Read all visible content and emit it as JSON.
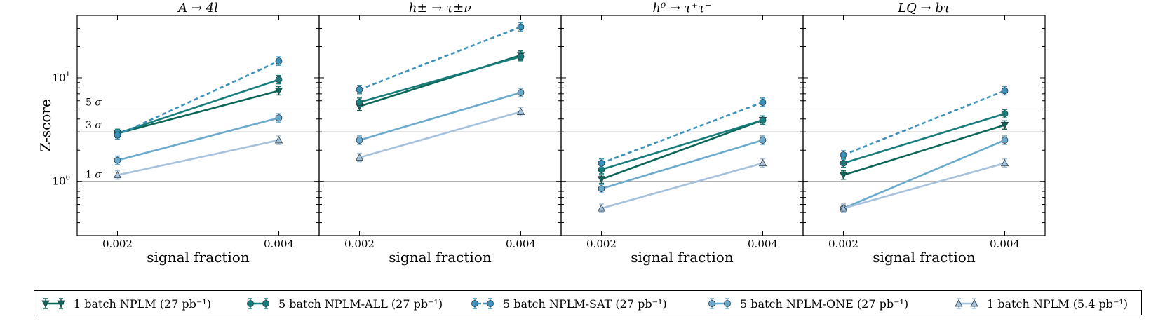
{
  "chart_data": {
    "type": "line",
    "ylabel": "Z-score",
    "xlabel": "signal fraction",
    "yscale": "log",
    "ylim": [
      0.3,
      40
    ],
    "xlim": [
      0.0015,
      0.0045
    ],
    "x": [
      0.002,
      0.004
    ],
    "x_tick_labels": [
      "0.002",
      "0.004"
    ],
    "y_tick_labels": [
      {
        "value": 10,
        "base": "10",
        "exp": "1"
      },
      {
        "value": 1,
        "base": "10",
        "exp": "0"
      }
    ],
    "reference_lines": [
      {
        "value": 5,
        "label": "5",
        "unit": "σ"
      },
      {
        "value": 3,
        "label": "3",
        "unit": "σ"
      },
      {
        "value": 1,
        "label": "1",
        "unit": "σ"
      }
    ],
    "series_styles": [
      {
        "name": "1 batch NPLM (27 pb⁻¹)",
        "color": "#0b6658",
        "dash": false,
        "marker": "triangle-down"
      },
      {
        "name": "5 batch NPLM-ALL (27 pb⁻¹)",
        "color": "#177d7b",
        "dash": false,
        "marker": "circle"
      },
      {
        "name": "5 batch NPLM-SAT (27 pb⁻¹)",
        "color": "#3a92bd",
        "dash": true,
        "marker": "circle"
      },
      {
        "name": "5 batch NPLM-ONE (27 pb⁻¹)",
        "color": "#6aaacd",
        "dash": false,
        "marker": "circle"
      },
      {
        "name": "1 batch NPLM (5.4 pb⁻¹)",
        "color": "#a6c1dc",
        "dash": false,
        "marker": "triangle-up"
      }
    ],
    "panels": [
      {
        "title": "A → 4l",
        "series": [
          {
            "name": "1 batch NPLM (27 pb⁻¹)",
            "values": [
              2.9,
              7.5
            ]
          },
          {
            "name": "5 batch NPLM-ALL (27 pb⁻¹)",
            "values": [
              2.9,
              9.6
            ]
          },
          {
            "name": "5 batch NPLM-SAT (27 pb⁻¹)",
            "values": [
              2.8,
              14.5
            ]
          },
          {
            "name": "5 batch NPLM-ONE (27 pb⁻¹)",
            "values": [
              1.6,
              4.1
            ]
          },
          {
            "name": "1 batch NPLM (5.4 pb⁻¹)",
            "values": [
              1.15,
              2.5
            ]
          }
        ]
      },
      {
        "title": "h± → τ±ν",
        "series": [
          {
            "name": "1 batch NPLM (27 pb⁻¹)",
            "values": [
              5.3,
              16.5
            ]
          },
          {
            "name": "5 batch NPLM-ALL (27 pb⁻¹)",
            "values": [
              5.8,
              16.0
            ]
          },
          {
            "name": "5 batch NPLM-SAT (27 pb⁻¹)",
            "values": [
              7.7,
              31.0
            ]
          },
          {
            "name": "5 batch NPLM-ONE (27 pb⁻¹)",
            "values": [
              2.5,
              7.2
            ]
          },
          {
            "name": "1 batch NPLM (5.4 pb⁻¹)",
            "values": [
              1.7,
              4.7
            ]
          }
        ]
      },
      {
        "title": "h⁰ → τ⁺τ⁻",
        "series": [
          {
            "name": "1 batch NPLM (27 pb⁻¹)",
            "values": [
              1.05,
              3.9
            ]
          },
          {
            "name": "5 batch NPLM-ALL (27 pb⁻¹)",
            "values": [
              1.3,
              3.9
            ]
          },
          {
            "name": "5 batch NPLM-SAT (27 pb⁻¹)",
            "values": [
              1.5,
              5.8
            ]
          },
          {
            "name": "5 batch NPLM-ONE (27 pb⁻¹)",
            "values": [
              0.85,
              2.5
            ]
          },
          {
            "name": "1 batch NPLM (5.4 pb⁻¹)",
            "values": [
              0.55,
              1.5
            ]
          }
        ]
      },
      {
        "title": "LQ → bτ",
        "series": [
          {
            "name": "1 batch NPLM (27 pb⁻¹)",
            "values": [
              1.15,
              3.5
            ]
          },
          {
            "name": "5 batch NPLM-ALL (27 pb⁻¹)",
            "values": [
              1.5,
              4.5
            ]
          },
          {
            "name": "5 batch NPLM-SAT (27 pb⁻¹)",
            "values": [
              1.8,
              7.5
            ]
          },
          {
            "name": "5 batch NPLM-ONE (27 pb⁻¹)",
            "values": [
              0.55,
              2.5
            ]
          },
          {
            "name": "1 batch NPLM (5.4 pb⁻¹)",
            "values": [
              0.55,
              1.5
            ]
          }
        ]
      }
    ]
  },
  "legend": [
    {
      "text": "1 batch NPLM (27 pb⁻¹)"
    },
    {
      "text": "5 batch NPLM-ALL (27 pb⁻¹)"
    },
    {
      "text": "5 batch NPLM-SAT (27 pb⁻¹)"
    },
    {
      "text": "5 batch NPLM-ONE (27 pb⁻¹)"
    },
    {
      "text": "1 batch NPLM (5.4 pb⁻¹)"
    }
  ]
}
